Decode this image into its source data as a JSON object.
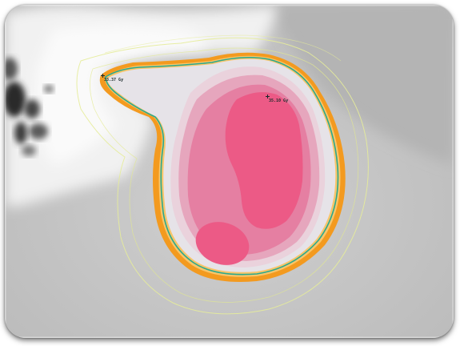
{
  "image": {
    "kind": "dose-distribution-overlay",
    "colors": {
      "background_gray": "#c4c4c4",
      "bright_region": "#f2f2f2",
      "dark_blotch": "#2b2b2b",
      "outer_isodose": "#f39a1f",
      "outer_isodose_light": "#f7c56a",
      "contour_line": "#2aa98f",
      "faint_isodose": "#e6ec9a",
      "dose_pale": "#ead2dc",
      "dose_light": "#e6a6bd",
      "dose_mid": "#e57fa2",
      "dose_hot": "#ec5a86"
    }
  },
  "markers": [
    {
      "id": "left",
      "label": "33.37 Gy"
    },
    {
      "id": "center",
      "label": "35.10 Gy"
    }
  ]
}
